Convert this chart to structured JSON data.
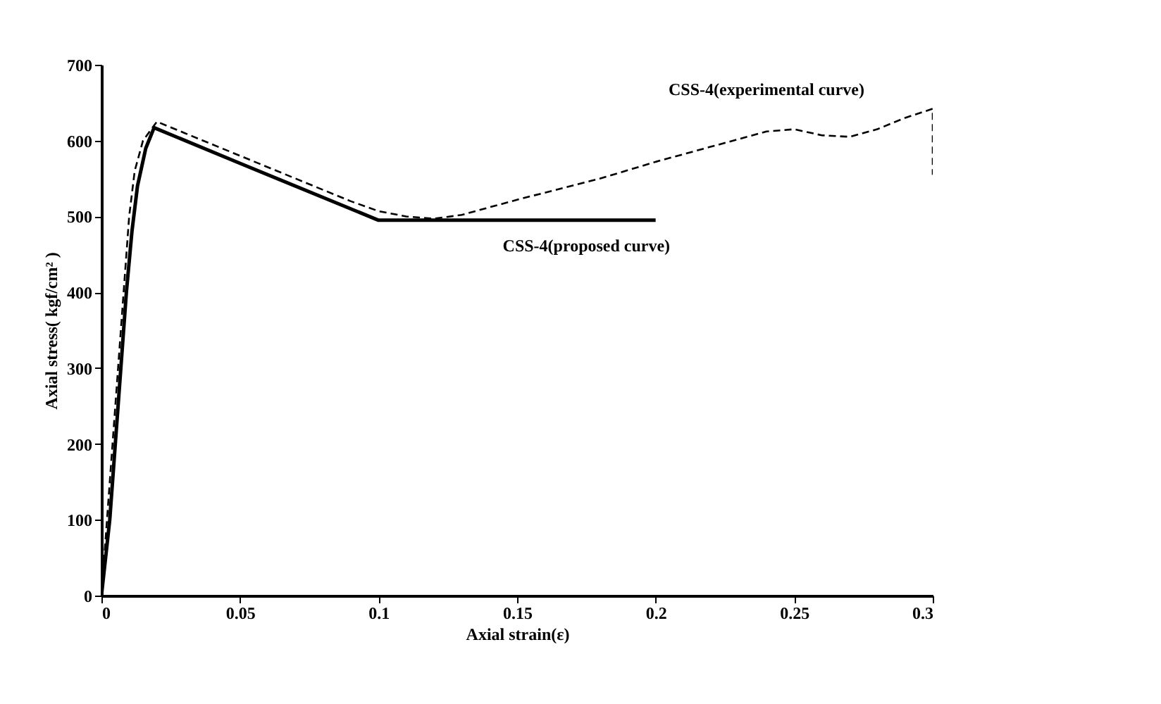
{
  "chart_data": {
    "type": "line",
    "xlabel": "Axial strain(ε)",
    "ylabel": "Axial stress( kgf/cm² )",
    "xlim": [
      0,
      0.3
    ],
    "xticks": [
      0,
      0.05,
      0.1,
      0.15,
      0.2,
      0.25,
      0.3
    ],
    "ylim": [
      0,
      700
    ],
    "yticks": [
      0,
      100,
      200,
      300,
      400,
      500,
      600,
      700
    ],
    "grid": false,
    "series": [
      {
        "color": "#000000",
        "line_style": "dashed",
        "x": [
          0,
          0.002,
          0.004,
          0.006,
          0.008,
          0.01,
          0.012,
          0.015,
          0.02,
          0.03,
          0.05,
          0.07,
          0.09,
          0.1,
          0.11,
          0.12,
          0.13,
          0.15,
          0.18,
          0.2,
          0.22,
          0.24,
          0.25,
          0.26,
          0.27,
          0.28,
          0.29,
          0.3,
          0.3
        ],
        "values": [
          0,
          100,
          200,
          300,
          400,
          500,
          560,
          600,
          625,
          610,
          580,
          550,
          520,
          507,
          500,
          497,
          502,
          522,
          550,
          572,
          592,
          612,
          615,
          607,
          605,
          615,
          630,
          642,
          555
        ]
      },
      {
        "color": "#000000",
        "line_style": "solid",
        "x": [
          0,
          0.003,
          0.005,
          0.007,
          0.009,
          0.011,
          0.013,
          0.016,
          0.019,
          0.05,
          0.1,
          0.2
        ],
        "values": [
          0,
          100,
          200,
          300,
          400,
          480,
          540,
          590,
          617,
          570,
          495,
          495
        ]
      }
    ],
    "annotations": [
      {
        "text": "CSS-4(experimental curve)",
        "x": 0.24,
        "y": 612
      },
      {
        "text": "CSS-4(proposed curve)",
        "x": 0.175,
        "y": 495
      }
    ]
  }
}
